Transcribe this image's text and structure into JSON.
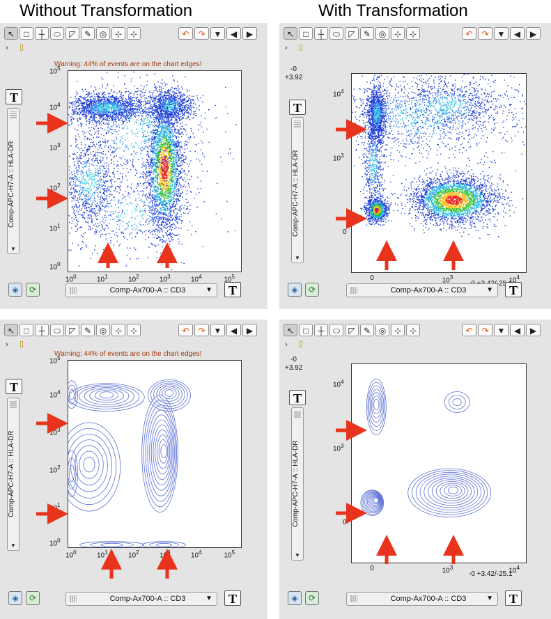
{
  "headings": {
    "left": "Without Transformation",
    "right": "With Transformation"
  },
  "toolbar": {
    "tools": [
      "↖",
      "□",
      "┼",
      "⬭",
      "◸",
      "✎",
      "◎",
      "⊹",
      "⊹"
    ],
    "right": [
      "↶",
      "↷",
      "▼",
      "◀",
      "▶"
    ]
  },
  "warning": "Warning: 44% of events are on the chart edges!",
  "t_label": "T",
  "y_param": "Comp-APC-H7-A :: HLA-DR",
  "x_param": "Comp-Ax700-A :: CD3",
  "transform_top_y": "-0",
  "transform_top_y2": "+3.92",
  "transform_bottom": "-0 +3.42/-25.1",
  "untransformed_y_ticks": [
    "10^5",
    "10^4",
    "10^3",
    "10^2",
    "10^1",
    "10^0"
  ],
  "untransformed_x_ticks": [
    "10^0",
    "10^1",
    "10^2",
    "10^3",
    "10^4",
    "10^5"
  ],
  "transformed_y_ticks": [
    "10^4",
    "10^3",
    "0"
  ],
  "transformed_x_ticks": [
    "0",
    "10^3",
    "10^4"
  ],
  "colors": {
    "panel": "#e4e4e4",
    "arrow": "#e8341c",
    "contour": "#5b6fd6"
  }
}
